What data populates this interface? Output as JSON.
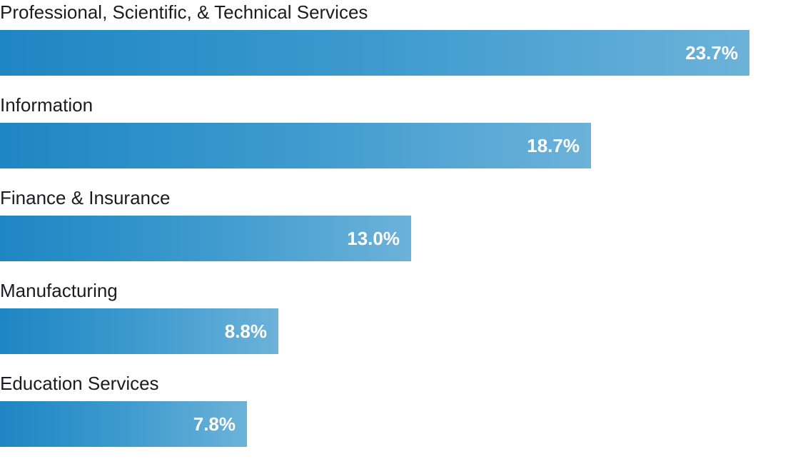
{
  "chart_data": {
    "type": "bar",
    "orientation": "horizontal",
    "categories": [
      "Professional, Scientific, & Technical Services",
      "Information",
      "Finance & Insurance",
      "Manufacturing",
      "Education Services"
    ],
    "values": [
      23.7,
      18.7,
      13.0,
      8.8,
      7.8
    ],
    "value_labels": [
      "23.7%",
      "18.7%",
      "13.0%",
      "8.8%",
      "7.8%"
    ],
    "unit": "%",
    "title": "",
    "xlabel": "",
    "ylabel": "",
    "xlim": [
      0,
      25
    ],
    "grid": false,
    "legend": "none",
    "bar_color_start": "#1e86c3",
    "bar_color_end": "#6cb2d9",
    "label_color": "#1b1b22",
    "value_label_color": "#ffffff"
  }
}
